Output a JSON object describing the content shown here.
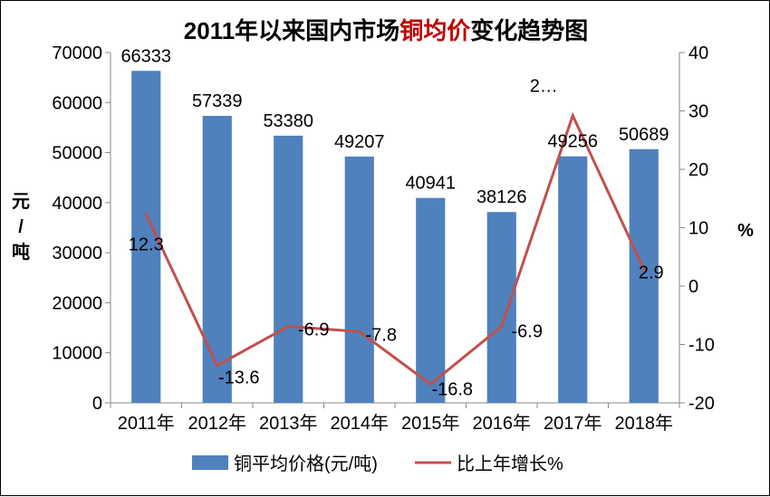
{
  "chart_data": {
    "type": "bar+line",
    "title_parts": [
      {
        "text": "2011年以来国内市场",
        "color": "#000000"
      },
      {
        "text": "铜均价",
        "color": "#c00000"
      },
      {
        "text": "变化趋势图",
        "color": "#000000"
      }
    ],
    "categories": [
      "2011年",
      "2012年",
      "2013年",
      "2014年",
      "2015年",
      "2016年",
      "2017年",
      "2018年"
    ],
    "series": [
      {
        "name": "铜平均价格(元/吨)",
        "type": "bar",
        "axis": "left",
        "color": "#4f81bd",
        "values": [
          66333,
          57339,
          53380,
          49207,
          40941,
          38126,
          49256,
          50689
        ],
        "labels": [
          "66333",
          "57339",
          "53380",
          "49207",
          "40941",
          "38126",
          "49256",
          "50689"
        ]
      },
      {
        "name": "比上年增长%",
        "type": "line",
        "axis": "right",
        "color": "#c0504d",
        "values": [
          12.3,
          -13.6,
          -6.9,
          -7.8,
          -16.8,
          -6.9,
          29.2,
          2.9
        ],
        "labels": [
          "12.3",
          "-13.6",
          "-6.9",
          "-7.8",
          "-16.8",
          "-6.9",
          "2…",
          "2.9"
        ]
      }
    ],
    "y_left": {
      "label_parts": [
        "元",
        "/",
        "吨"
      ],
      "ylim": [
        0,
        70000
      ],
      "ticks": [
        "0",
        "10000",
        "20000",
        "30000",
        "40000",
        "50000",
        "60000",
        "70000"
      ]
    },
    "y_right": {
      "label": "%",
      "ylim": [
        -20,
        40
      ],
      "ticks": [
        "-20",
        "-10",
        "0",
        "10",
        "20",
        "30",
        "40"
      ]
    },
    "grid": false,
    "legend_position": "bottom"
  }
}
